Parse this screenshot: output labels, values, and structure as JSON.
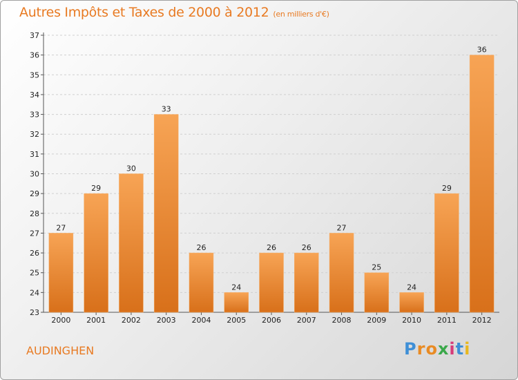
{
  "title": "Autres Impôts et Taxes de 2000 à 2012",
  "subtitle": "(en milliers d'€)",
  "commune": "AUDINGHEN",
  "logo": {
    "letters": [
      "P",
      "r",
      "o",
      "x",
      "i",
      "t",
      "i"
    ],
    "colors": [
      "#3f8fd6",
      "#e98b24",
      "#e98b24",
      "#3aa84a",
      "#d63b7a",
      "#3f8fd6",
      "#e8b81f"
    ]
  },
  "colors": {
    "bar_light": "#f7a455",
    "bar_dark": "#d8701a",
    "title": "#e87a22"
  },
  "chart_data": {
    "type": "bar",
    "title": "Autres Impôts et Taxes de 2000 à 2012",
    "subtitle": "(en milliers d'€)",
    "categories": [
      "2000",
      "2001",
      "2002",
      "2003",
      "2004",
      "2005",
      "2006",
      "2007",
      "2008",
      "2009",
      "2010",
      "2011",
      "2012"
    ],
    "values": [
      27,
      29,
      30,
      33,
      26,
      24,
      26,
      26,
      27,
      25,
      24,
      29,
      36
    ],
    "ylim": [
      23,
      37
    ],
    "yticks": [
      23,
      24,
      25,
      26,
      27,
      28,
      29,
      30,
      31,
      32,
      33,
      34,
      35,
      36,
      37
    ],
    "grid": true,
    "legend": "none"
  }
}
